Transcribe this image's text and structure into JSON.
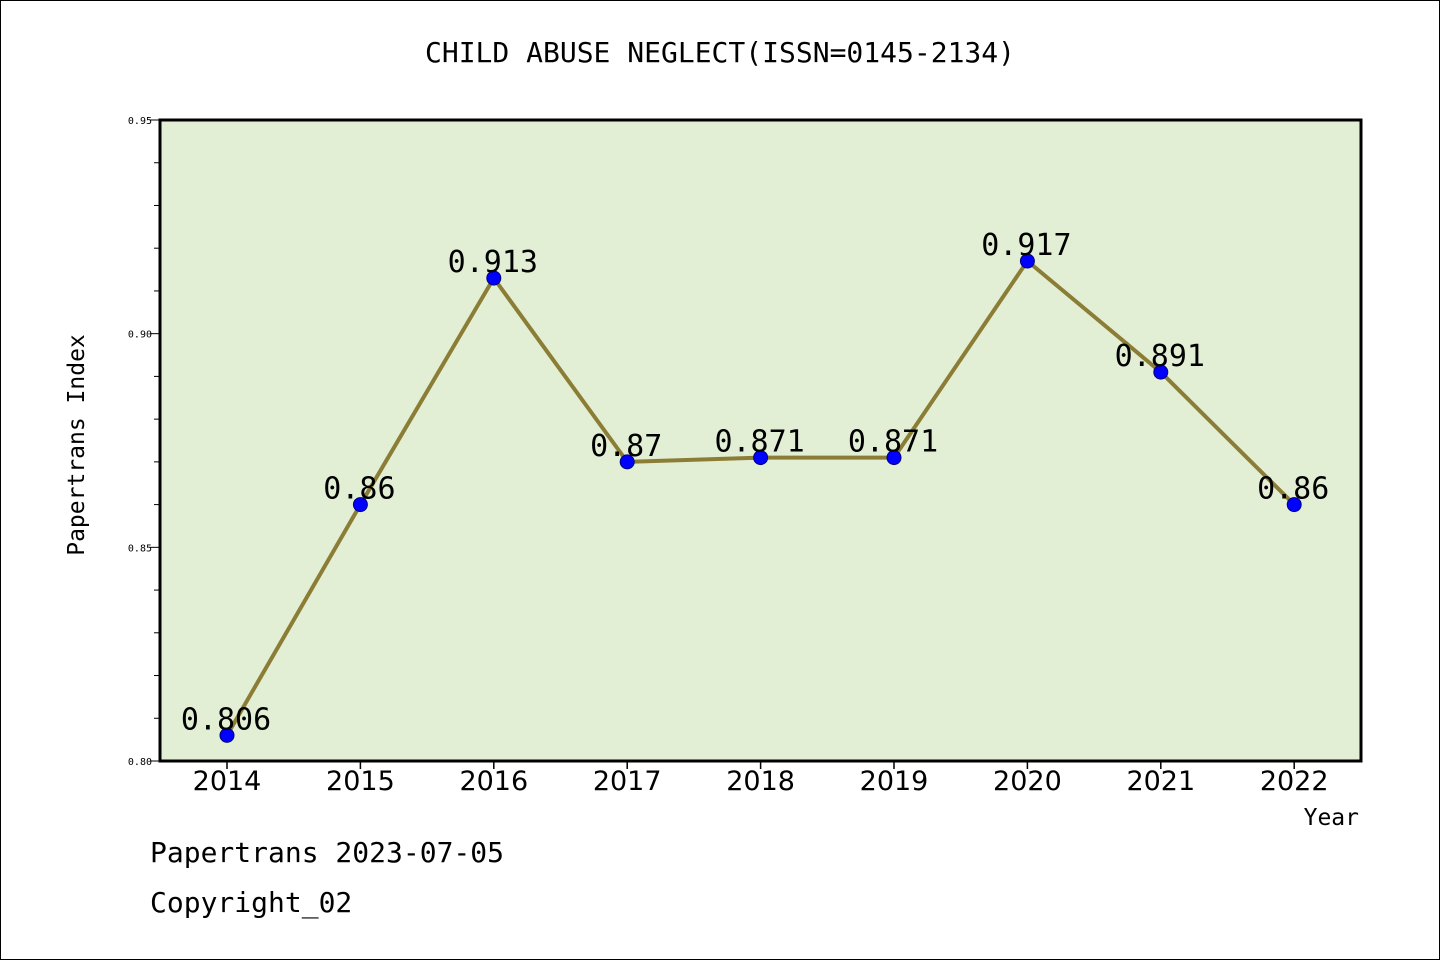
{
  "chart_data": {
    "type": "line",
    "title": "CHILD ABUSE NEGLECT(ISSN=0145-2134)",
    "xlabel": "Year",
    "ylabel": "Papertrans Index",
    "categories": [
      "2014",
      "2015",
      "2016",
      "2017",
      "2018",
      "2019",
      "2020",
      "2021",
      "2022"
    ],
    "series": [
      {
        "values": [
          0.806,
          0.86,
          0.913,
          0.87,
          0.871,
          0.871,
          0.917,
          0.891,
          0.86
        ],
        "data_labels": [
          "0.806",
          "0.86",
          "0.913",
          "0.87",
          "0.871",
          "0.871",
          "0.917",
          "0.891",
          "0.86"
        ]
      }
    ],
    "ylim": [
      0.8,
      0.95
    ],
    "y_ticks": [
      "0.80",
      "0.85",
      "0.90",
      "0.95"
    ],
    "grid": false,
    "legend": "none",
    "colors": {
      "plot_background": "#e2efd5",
      "line": "#8b7d35",
      "marker": "#0000ff"
    }
  },
  "footer": {
    "source": "Papertrans 2023-07-05",
    "copyright": "Copyright_02"
  }
}
